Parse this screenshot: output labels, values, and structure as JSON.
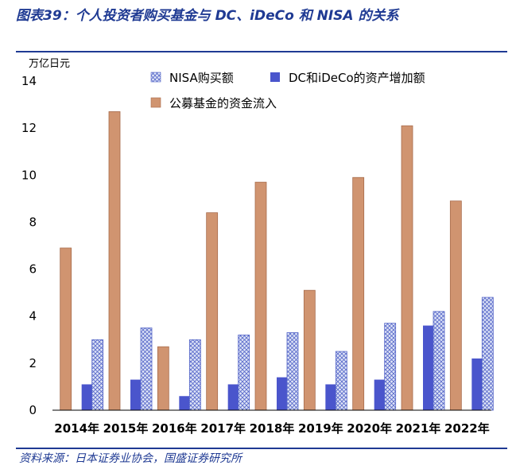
{
  "title": "图表39：个人投资者购买基金与 DC、iDeCo 和 NISA 的关系",
  "source": "资料来源：日本证券业协会，国盛证券研究所",
  "colors": {
    "title": "#1f3a93",
    "nisa_fill": "#dfe5f7",
    "nisa_stroke": "#5566c8",
    "dc_fill": "#4a55cc",
    "fund_fill": "#d09470",
    "fund_stroke": "#a86c4c"
  },
  "chart_data": {
    "type": "bar",
    "ylabel": "万亿日元",
    "ylim": [
      0,
      14
    ],
    "yticks": [
      0,
      2,
      4,
      6,
      8,
      10,
      12,
      14
    ],
    "categories": [
      "2014年",
      "2015年",
      "2016年",
      "2017年",
      "2018年",
      "2019年",
      "2020年",
      "2021年",
      "2022年"
    ],
    "series": [
      {
        "name": "公募基金的资金流入",
        "values": [
          6.9,
          12.7,
          2.7,
          8.4,
          9.7,
          5.1,
          9.9,
          12.1,
          8.9
        ]
      },
      {
        "name": "DC和iDeCo的资产增加额",
        "values": [
          1.1,
          1.3,
          0.6,
          1.1,
          1.4,
          1.1,
          1.3,
          3.6,
          2.2
        ]
      },
      {
        "name": "NISA购买额",
        "values": [
          3.0,
          3.5,
          3.0,
          3.2,
          3.3,
          2.5,
          3.7,
          4.2,
          4.8
        ]
      }
    ],
    "legend": {
      "position": "top",
      "row1": [
        "NISA购买额",
        "DC和iDeCo的资产增加额"
      ],
      "row2": [
        "公募基金的资金流入"
      ]
    },
    "grid": false
  }
}
